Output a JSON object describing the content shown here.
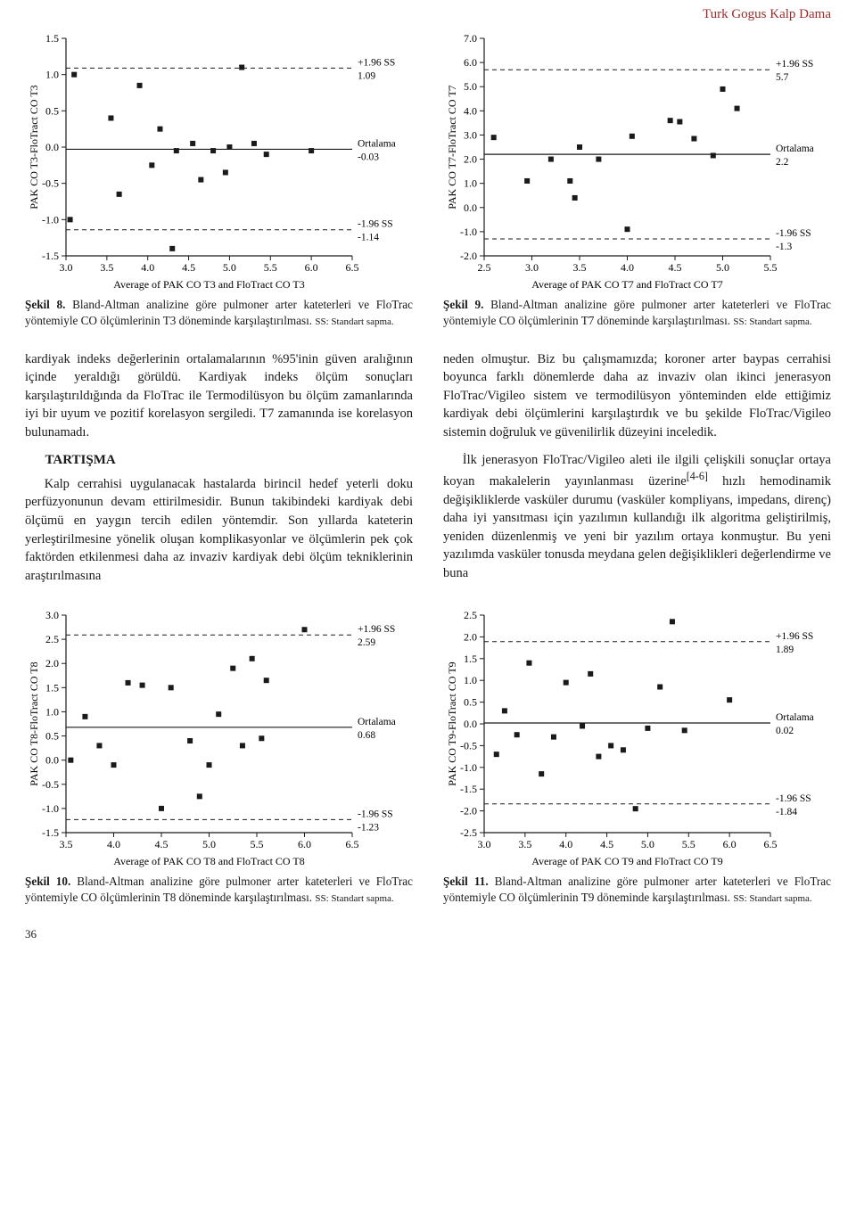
{
  "journal_header": "Turk Gogus Kalp Dama",
  "page_number": "36",
  "axis_color": "#1a1a1a",
  "marker_color": "#1a1a1a",
  "marker_size": 6,
  "mean_line_color": "#1a1a1a",
  "limit_line_color": "#1a1a1a",
  "background_color": "#ffffff",
  "font_family": "Georgia, serif",
  "axis_fontsize": 12,
  "annotation_fontsize": 11.5,
  "caption_fontsize": 13.2,
  "charts": {
    "t3": {
      "ylabel": "PAK CO T3-FloTract CO T3",
      "xlabel": "Average of PAK CO T3 and FloTract CO T3",
      "xlim": [
        3.0,
        6.5
      ],
      "xticks": [
        3.0,
        3.5,
        4.0,
        4.5,
        5.0,
        5.5,
        6.0,
        6.5
      ],
      "ylim": [
        -1.5,
        1.5
      ],
      "yticks": [
        -1.5,
        -1.0,
        -0.5,
        0.0,
        0.5,
        1.0,
        1.5
      ],
      "mean": -0.03,
      "upper": 1.09,
      "lower": -1.14,
      "upper_label_top": "+1.96 SS",
      "upper_label_val": "1.09",
      "mean_label_top": "Ortalama",
      "mean_label_val": "-0.03",
      "lower_label_top": "-1.96 SS",
      "lower_label_val": "-1.14",
      "points": [
        [
          3.05,
          -1.0
        ],
        [
          3.1,
          1.0
        ],
        [
          3.55,
          0.4
        ],
        [
          3.65,
          -0.65
        ],
        [
          3.9,
          0.85
        ],
        [
          4.05,
          -0.25
        ],
        [
          4.15,
          0.25
        ],
        [
          4.3,
          -1.4
        ],
        [
          4.35,
          -0.05
        ],
        [
          4.55,
          0.05
        ],
        [
          4.65,
          -0.45
        ],
        [
          4.8,
          -0.05
        ],
        [
          4.95,
          -0.35
        ],
        [
          5.0,
          0.0
        ],
        [
          5.15,
          1.1
        ],
        [
          5.3,
          0.05
        ],
        [
          5.45,
          -0.1
        ],
        [
          6.0,
          -0.05
        ]
      ]
    },
    "t7": {
      "ylabel": "PAK CO T7-FloTract CO T7",
      "xlabel": "Average of PAK CO T7  and FloTract CO T7",
      "xlim": [
        2.5,
        5.5
      ],
      "xticks": [
        2.5,
        3.0,
        3.5,
        4.0,
        4.5,
        5.0,
        5.5
      ],
      "ylim": [
        -2,
        7
      ],
      "yticks": [
        -2,
        -1,
        0,
        1,
        2,
        3,
        4,
        5,
        6,
        7
      ],
      "mean": 2.2,
      "upper": 5.7,
      "lower": -1.3,
      "upper_label_top": "+1.96 SS",
      "upper_label_val": "5.7",
      "mean_label_top": "Ortalama",
      "mean_label_val": "2.2",
      "lower_label_top": "-1.96 SS",
      "lower_label_val": "-1.3",
      "points": [
        [
          2.6,
          2.9
        ],
        [
          2.95,
          1.1
        ],
        [
          3.2,
          2.0
        ],
        [
          3.4,
          1.1
        ],
        [
          3.45,
          0.4
        ],
        [
          3.5,
          2.5
        ],
        [
          3.7,
          2.0
        ],
        [
          4.0,
          -0.9
        ],
        [
          4.05,
          2.95
        ],
        [
          4.45,
          3.6
        ],
        [
          4.55,
          3.55
        ],
        [
          4.7,
          2.85
        ],
        [
          4.9,
          2.15
        ],
        [
          5.0,
          4.9
        ],
        [
          5.15,
          4.1
        ]
      ]
    },
    "t8": {
      "ylabel": "PAK CO T8-FloTract CO T8",
      "xlabel": "Average of PAK CO T8  and FloTract CO T8",
      "xlim": [
        3.5,
        6.5
      ],
      "xticks": [
        3.5,
        4.0,
        4.5,
        5.0,
        5.5,
        6.0,
        6.5
      ],
      "ylim": [
        -1.5,
        3.0
      ],
      "yticks": [
        -1.5,
        -1.0,
        -0.5,
        0.0,
        0.5,
        1.0,
        1.5,
        2.0,
        2.5,
        3.0
      ],
      "mean": 0.68,
      "upper": 2.59,
      "lower": -1.23,
      "upper_label_top": "+1.96 SS",
      "upper_label_val": "2.59",
      "mean_label_top": "Ortalama",
      "mean_label_val": "0.68",
      "lower_label_top": "-1.96 SS",
      "lower_label_val": "-1.23",
      "points": [
        [
          3.55,
          0.0
        ],
        [
          3.7,
          0.9
        ],
        [
          3.85,
          0.3
        ],
        [
          4.0,
          -0.1
        ],
        [
          4.15,
          1.6
        ],
        [
          4.3,
          1.55
        ],
        [
          4.5,
          -1.0
        ],
        [
          4.6,
          1.5
        ],
        [
          4.8,
          0.4
        ],
        [
          4.9,
          -0.75
        ],
        [
          5.0,
          -0.1
        ],
        [
          5.1,
          0.95
        ],
        [
          5.25,
          1.9
        ],
        [
          5.35,
          0.3
        ],
        [
          5.45,
          2.1
        ],
        [
          5.55,
          0.45
        ],
        [
          5.6,
          1.65
        ],
        [
          6.0,
          2.7
        ]
      ]
    },
    "t9": {
      "ylabel": "PAK CO T9-FloTract CO T9",
      "xlabel": "Average of PAK CO T9  and FloTract CO T9",
      "xlim": [
        3.0,
        6.5
      ],
      "xticks": [
        3.0,
        3.5,
        4.0,
        4.5,
        5.0,
        5.5,
        6.0,
        6.5
      ],
      "ylim": [
        -2.5,
        2.5
      ],
      "yticks": [
        -2.5,
        -2.0,
        -1.5,
        -1.0,
        -0.5,
        0.0,
        0.5,
        1.0,
        1.5,
        2.0,
        2.5
      ],
      "mean": 0.02,
      "upper": 1.89,
      "lower": -1.84,
      "upper_label_top": "+1.96 SS",
      "upper_label_val": "1.89",
      "mean_label_top": "Ortalama",
      "mean_label_val": "0.02",
      "lower_label_top": "-1.96 SS",
      "lower_label_val": "-1.84",
      "points": [
        [
          3.15,
          -0.7
        ],
        [
          3.25,
          0.3
        ],
        [
          3.4,
          -0.25
        ],
        [
          3.55,
          1.4
        ],
        [
          3.7,
          -1.15
        ],
        [
          3.85,
          -0.3
        ],
        [
          4.0,
          0.95
        ],
        [
          4.2,
          -0.05
        ],
        [
          4.3,
          1.15
        ],
        [
          4.4,
          -0.75
        ],
        [
          4.55,
          -0.5
        ],
        [
          4.7,
          -0.6
        ],
        [
          4.85,
          -1.95
        ],
        [
          5.0,
          -0.1
        ],
        [
          5.15,
          0.85
        ],
        [
          5.3,
          2.35
        ],
        [
          5.45,
          -0.15
        ],
        [
          6.0,
          0.55
        ]
      ]
    }
  },
  "captions": {
    "t3_bold": "Şekil 8.",
    "t3_text": " Bland-Altman analizine göre pulmoner arter kateterleri ve FloTrac yöntemiyle CO ölçümlerinin T3 döneminde karşılaştırılması. ",
    "t7_bold": "Şekil 9.",
    "t7_text": " Bland-Altman analizine göre pulmoner arter kateterleri ve FloTrac yöntemiyle CO ölçümlerinin T7 döneminde karşılaştırılması. ",
    "t8_bold": "Şekil 10.",
    "t8_text": " Bland-Altman analizine göre pulmoner arter kateterleri ve FloTrac yöntemiyle CO ölçümlerinin T8 döneminde karşılaştırılması. ",
    "t9_bold": "Şekil 11.",
    "t9_text": " Bland-Altman analizine göre pulmoner arter kateterleri ve FloTrac yöntemiyle CO ölçümlerinin T9 döneminde karşılaştırılması. ",
    "ss_note": "SS: Standart sapma."
  },
  "body": {
    "left_p1": "kardiyak indeks değerlerinin ortalamalarının %95'inin güven aralığının içinde yeraldığı görüldü. Kardiyak indeks ölçüm sonuçları karşılaştırıldığında da FloTrac ile Termodilüsyon bu ölçüm zamanlarında iyi bir uyum ve pozitif korelasyon sergiledi. T7 zamanında ise korelasyon bulunamadı.",
    "left_h3": "TARTIŞMA",
    "left_p2": "Kalp cerrahisi uygulanacak hastalarda birincil hedef yeterli doku perfüzyonunun devam ettirilmesidir. Bunun takibindeki kardiyak debi ölçümü en yaygın tercih edilen yöntemdir. Son yıllarda kateterin yerleştirilmesine yönelik oluşan komplikasyonlar ve ölçümlerin pek çok faktörden etkilenmesi daha az invaziv kardiyak debi ölçüm tekniklerinin araştırılmasına",
    "right_p1": "neden olmuştur. Biz bu çalışmamızda; koroner arter baypas cerrahisi boyunca farklı dönemlerde daha az invaziv olan ikinci jenerasyon FloTrac/Vigileo sistem ve termodilüsyon yönteminden elde ettiğimiz kardiyak debi ölçümlerini karşılaştırdık ve bu şekilde FloTrac/Vigileo sistemin doğruluk ve güvenilirlik düzeyini inceledik.",
    "right_p2_a": "İlk jenerasyon FloTrac/Vigileo aleti ile ilgili çelişkili sonuçlar ortaya koyan makalelerin yayınlanması üzerine",
    "right_p2_sup": "[4-6]",
    "right_p2_b": " hızlı hemodinamik değişikliklerde vasküler durumu (vasküler kompliyans, impedans, direnç) daha iyi yansıtması için yazılımın kullandığı ilk algoritma geliştirilmiş, yeniden düzenlenmiş ve yeni bir yazılım ortaya konmuştur. Bu yeni yazılımda vasküler tonusda meydana gelen değişiklikleri değerlendirme ve buna"
  }
}
